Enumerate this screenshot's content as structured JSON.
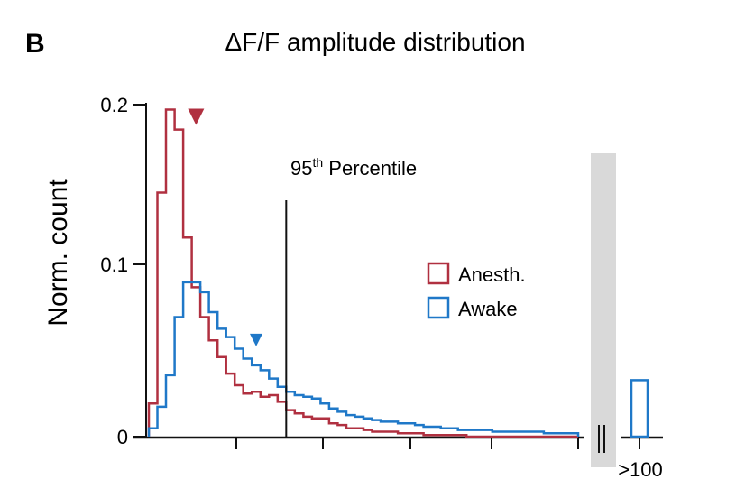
{
  "panel_label": "B",
  "chart_data": {
    "type": "histogram",
    "title": "ΔF/F amplitude distribution",
    "ylabel": "Norm. count",
    "xlabel": "",
    "ylim": [
      0,
      0.2
    ],
    "yticks": [
      "0",
      "0.1",
      "0.2"
    ],
    "overflow_label": ">100",
    "grid": false,
    "legend_position": "right-center",
    "series": [
      {
        "name": "Anesth.",
        "color": "#b03040",
        "marker_at_bin": 5.5,
        "values": [
          0.02,
          0.147,
          0.197,
          0.185,
          0.12,
          0.09,
          0.072,
          0.058,
          0.048,
          0.038,
          0.031,
          0.026,
          0.027,
          0.024,
          0.025,
          0.021,
          0.016,
          0.014,
          0.012,
          0.011,
          0.011,
          0.008,
          0.007,
          0.005,
          0.005,
          0.004,
          0.003,
          0.003,
          0.003,
          0.002,
          0.002,
          0.002,
          0.001,
          0.001,
          0.001,
          0.001,
          0.001,
          0.0,
          0.0,
          0.0,
          0.0,
          0.0,
          0.0,
          0.0,
          0.0,
          0.0,
          0.0,
          0.0,
          0.0,
          0.0
        ],
        "overflow": 0.0
      },
      {
        "name": "Awake",
        "color": "#1f78c8",
        "marker_at_bin": 12.5,
        "values": [
          0.005,
          0.018,
          0.037,
          0.072,
          0.093,
          0.093,
          0.087,
          0.075,
          0.065,
          0.06,
          0.053,
          0.047,
          0.043,
          0.04,
          0.035,
          0.03,
          0.027,
          0.025,
          0.024,
          0.023,
          0.02,
          0.017,
          0.015,
          0.013,
          0.012,
          0.011,
          0.01,
          0.009,
          0.009,
          0.008,
          0.008,
          0.007,
          0.006,
          0.006,
          0.005,
          0.005,
          0.004,
          0.004,
          0.004,
          0.004,
          0.003,
          0.003,
          0.003,
          0.003,
          0.003,
          0.003,
          0.002,
          0.002,
          0.002,
          0.002
        ],
        "overflow": 0.034
      }
    ],
    "vline": {
      "label_base": "95",
      "label_sup": "th",
      "label_rest": " Percentile",
      "at_bin": 16
    }
  }
}
